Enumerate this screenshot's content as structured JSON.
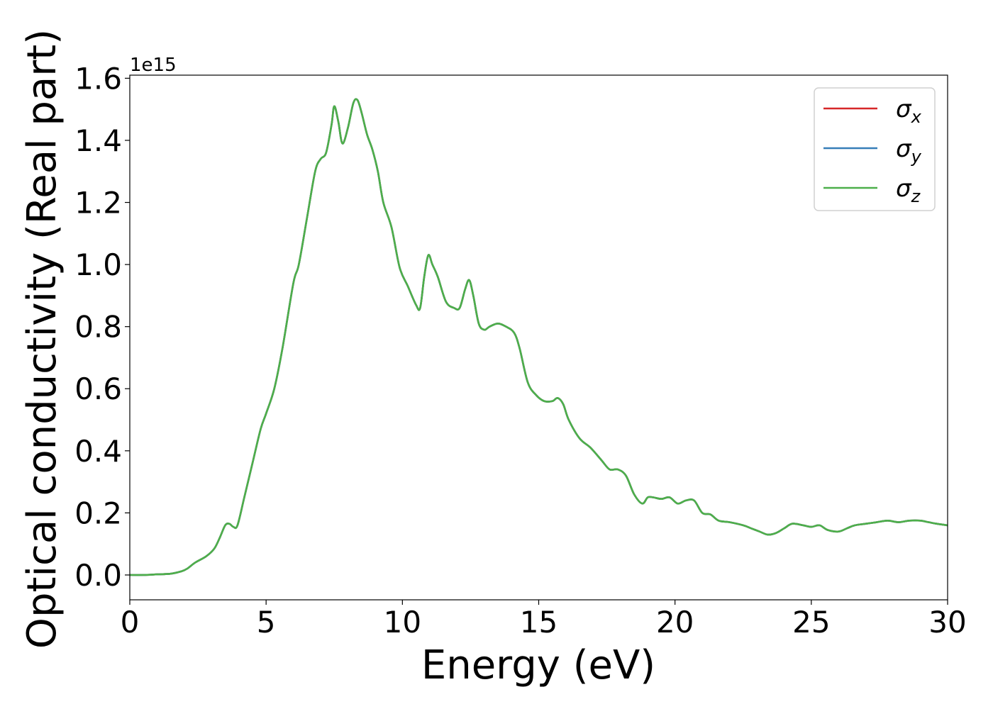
{
  "chart_data": {
    "type": "line",
    "title": "",
    "xlabel": "Energy (eV)",
    "ylabel": "Optical conductivity (Real part)",
    "y_offset_label": "1e15",
    "xlim": [
      0,
      30
    ],
    "ylim": [
      -0.08,
      1.61
    ],
    "x_ticks": [
      0,
      5,
      10,
      15,
      20,
      25,
      30
    ],
    "y_ticks": [
      0.0,
      0.2,
      0.4,
      0.6,
      0.8,
      1.0,
      1.2,
      1.4,
      1.6
    ],
    "y_tick_labels": [
      "0.0",
      "0.2",
      "0.4",
      "0.6",
      "0.8",
      "1.0",
      "1.2",
      "1.4",
      "1.6"
    ],
    "grid": false,
    "legend_position": "top-right",
    "legend_note": "three series overlap exactly; only the last-drawn (σz) is visible",
    "x": [
      0,
      0.5,
      1.0,
      1.5,
      1.9,
      2.1,
      2.4,
      2.8,
      3.1,
      3.3,
      3.5,
      3.65,
      3.8,
      3.95,
      4.2,
      4.5,
      4.8,
      5.0,
      5.3,
      5.6,
      6.0,
      6.2,
      6.5,
      6.8,
      7.0,
      7.2,
      7.4,
      7.5,
      7.65,
      7.8,
      8.0,
      8.2,
      8.35,
      8.5,
      8.7,
      8.9,
      9.1,
      9.3,
      9.6,
      9.9,
      10.2,
      10.5,
      10.65,
      10.8,
      10.95,
      11.1,
      11.3,
      11.6,
      11.9,
      12.1,
      12.3,
      12.45,
      12.6,
      12.8,
      13.0,
      13.2,
      13.5,
      13.8,
      14.1,
      14.3,
      14.6,
      14.9,
      15.2,
      15.5,
      15.7,
      15.9,
      16.1,
      16.5,
      16.9,
      17.3,
      17.6,
      17.9,
      18.2,
      18.5,
      18.8,
      19.0,
      19.2,
      19.5,
      19.8,
      20.1,
      20.4,
      20.7,
      21.0,
      21.3,
      21.6,
      22.0,
      22.5,
      22.8,
      23.1,
      23.4,
      23.7,
      24.0,
      24.3,
      24.7,
      25.0,
      25.3,
      25.6,
      26.0,
      26.3,
      26.6,
      27.0,
      27.4,
      27.8,
      28.2,
      28.6,
      29.0,
      29.3,
      29.6,
      30.0
    ],
    "series": [
      {
        "name": "σx",
        "color": "#d62728",
        "values": [
          0.0,
          0.0,
          0.002,
          0.004,
          0.012,
          0.02,
          0.04,
          0.06,
          0.085,
          0.12,
          0.16,
          0.165,
          0.155,
          0.16,
          0.25,
          0.36,
          0.47,
          0.52,
          0.6,
          0.73,
          0.94,
          1.0,
          1.15,
          1.3,
          1.34,
          1.36,
          1.45,
          1.51,
          1.46,
          1.39,
          1.44,
          1.52,
          1.53,
          1.49,
          1.42,
          1.37,
          1.3,
          1.2,
          1.12,
          0.99,
          0.93,
          0.87,
          0.86,
          0.96,
          1.03,
          1.0,
          0.96,
          0.88,
          0.86,
          0.86,
          0.92,
          0.95,
          0.9,
          0.81,
          0.79,
          0.8,
          0.81,
          0.8,
          0.78,
          0.73,
          0.62,
          0.58,
          0.56,
          0.56,
          0.57,
          0.55,
          0.5,
          0.44,
          0.41,
          0.37,
          0.34,
          0.34,
          0.32,
          0.26,
          0.23,
          0.25,
          0.25,
          0.245,
          0.25,
          0.23,
          0.24,
          0.24,
          0.2,
          0.195,
          0.175,
          0.17,
          0.16,
          0.15,
          0.14,
          0.13,
          0.135,
          0.15,
          0.165,
          0.16,
          0.155,
          0.16,
          0.145,
          0.14,
          0.15,
          0.16,
          0.165,
          0.17,
          0.175,
          0.17,
          0.175,
          0.175,
          0.17,
          0.165,
          0.16
        ]
      },
      {
        "name": "σy",
        "color": "#377eb8",
        "values": [
          0.0,
          0.0,
          0.002,
          0.004,
          0.012,
          0.02,
          0.04,
          0.06,
          0.085,
          0.12,
          0.16,
          0.165,
          0.155,
          0.16,
          0.25,
          0.36,
          0.47,
          0.52,
          0.6,
          0.73,
          0.94,
          1.0,
          1.15,
          1.3,
          1.34,
          1.36,
          1.45,
          1.51,
          1.46,
          1.39,
          1.44,
          1.52,
          1.53,
          1.49,
          1.42,
          1.37,
          1.3,
          1.2,
          1.12,
          0.99,
          0.93,
          0.87,
          0.86,
          0.96,
          1.03,
          1.0,
          0.96,
          0.88,
          0.86,
          0.86,
          0.92,
          0.95,
          0.9,
          0.81,
          0.79,
          0.8,
          0.81,
          0.8,
          0.78,
          0.73,
          0.62,
          0.58,
          0.56,
          0.56,
          0.57,
          0.55,
          0.5,
          0.44,
          0.41,
          0.37,
          0.34,
          0.34,
          0.32,
          0.26,
          0.23,
          0.25,
          0.25,
          0.245,
          0.25,
          0.23,
          0.24,
          0.24,
          0.2,
          0.195,
          0.175,
          0.17,
          0.16,
          0.15,
          0.14,
          0.13,
          0.135,
          0.15,
          0.165,
          0.16,
          0.155,
          0.16,
          0.145,
          0.14,
          0.15,
          0.16,
          0.165,
          0.17,
          0.175,
          0.17,
          0.175,
          0.175,
          0.17,
          0.165,
          0.16
        ]
      },
      {
        "name": "σz",
        "color": "#4daf4a",
        "values": [
          0.0,
          0.0,
          0.002,
          0.004,
          0.012,
          0.02,
          0.04,
          0.06,
          0.085,
          0.12,
          0.16,
          0.165,
          0.155,
          0.16,
          0.25,
          0.36,
          0.47,
          0.52,
          0.6,
          0.73,
          0.94,
          1.0,
          1.15,
          1.3,
          1.34,
          1.36,
          1.45,
          1.51,
          1.46,
          1.39,
          1.44,
          1.52,
          1.53,
          1.49,
          1.42,
          1.37,
          1.3,
          1.2,
          1.12,
          0.99,
          0.93,
          0.87,
          0.86,
          0.96,
          1.03,
          1.0,
          0.96,
          0.88,
          0.86,
          0.86,
          0.92,
          0.95,
          0.9,
          0.81,
          0.79,
          0.8,
          0.81,
          0.8,
          0.78,
          0.73,
          0.62,
          0.58,
          0.56,
          0.56,
          0.57,
          0.55,
          0.5,
          0.44,
          0.41,
          0.37,
          0.34,
          0.34,
          0.32,
          0.26,
          0.23,
          0.25,
          0.25,
          0.245,
          0.25,
          0.23,
          0.24,
          0.24,
          0.2,
          0.195,
          0.175,
          0.17,
          0.16,
          0.15,
          0.14,
          0.13,
          0.135,
          0.15,
          0.165,
          0.16,
          0.155,
          0.16,
          0.145,
          0.14,
          0.15,
          0.16,
          0.165,
          0.17,
          0.175,
          0.17,
          0.175,
          0.175,
          0.17,
          0.165,
          0.16
        ]
      }
    ],
    "legend": [
      {
        "symbol": "σ",
        "subscript": "x",
        "color": "#d62728"
      },
      {
        "symbol": "σ",
        "subscript": "y",
        "color": "#377eb8"
      },
      {
        "symbol": "σ",
        "subscript": "z",
        "color": "#4daf4a"
      }
    ]
  }
}
